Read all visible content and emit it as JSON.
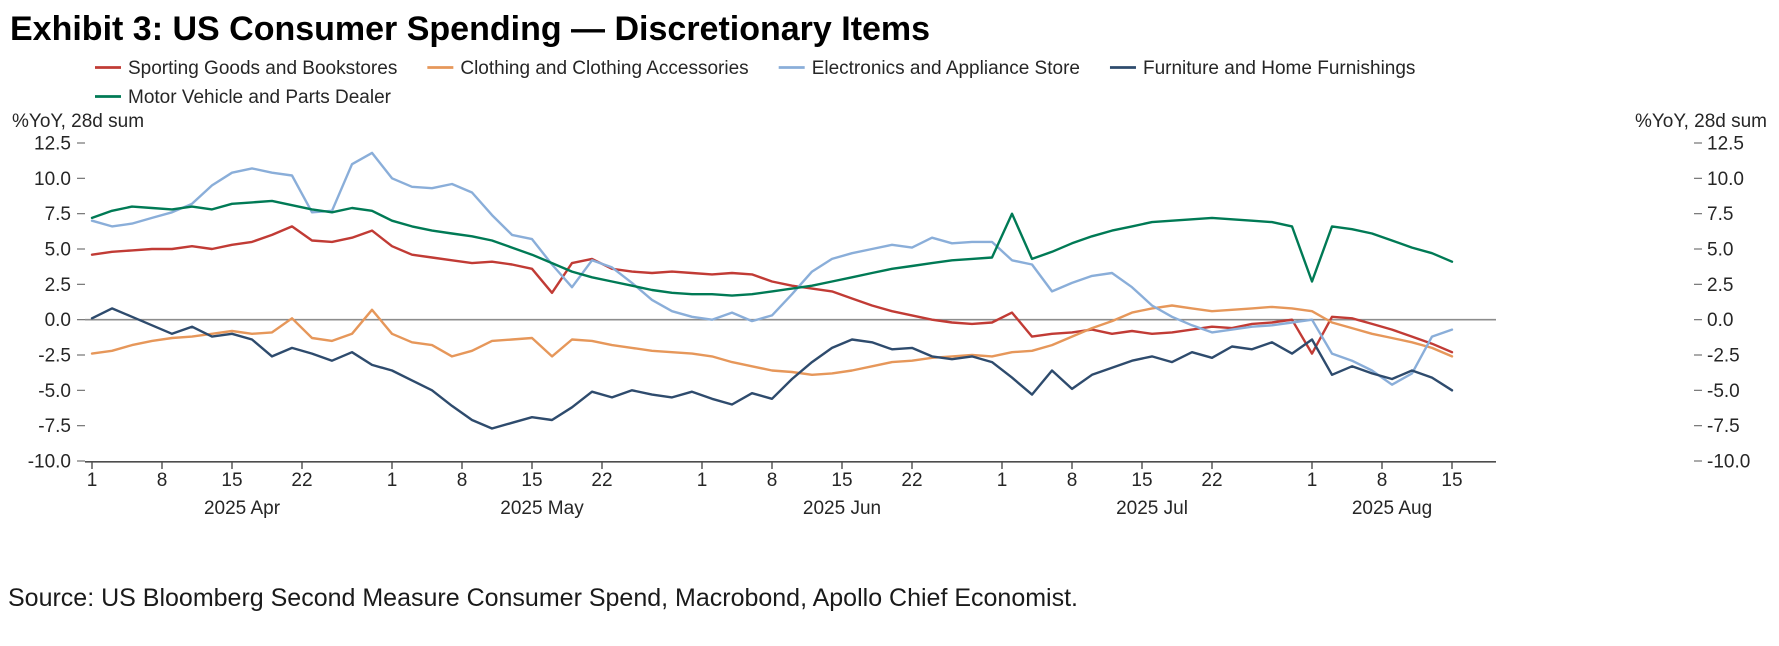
{
  "title": "Exhibit 3: US Consumer Spending — Discretionary Items",
  "source": "Source: US Bloomberg Second Measure Consumer Spend, Macrobond, Apollo Chief Economist.",
  "chart_data": {
    "type": "line",
    "title": "Exhibit 3: US Consumer Spending — Discretionary Items",
    "ylabel_left": "%YoY, 28d sum",
    "ylabel_right": "%YoY, 28d sum",
    "ylim": [
      -10,
      12.5
    ],
    "yticks": [
      12.5,
      10,
      7.5,
      5,
      2.5,
      0,
      -2.5,
      -5,
      -7.5,
      -10
    ],
    "grid": false,
    "zero_line": true,
    "legend_position": "top",
    "x_unit": "days since 2025-04-01",
    "x": [
      0,
      2,
      4,
      6,
      8,
      10,
      12,
      14,
      16,
      18,
      20,
      22,
      24,
      26,
      28,
      30,
      32,
      34,
      36,
      38,
      40,
      42,
      44,
      46,
      48,
      50,
      52,
      54,
      56,
      58,
      60,
      62,
      64,
      66,
      68,
      70,
      72,
      74,
      76,
      78,
      80,
      82,
      84,
      86,
      88,
      90,
      92,
      94,
      96,
      98,
      100,
      102,
      104,
      106,
      108,
      110,
      112,
      114,
      116,
      118,
      120,
      122,
      124,
      126,
      128,
      130,
      132,
      134,
      136
    ],
    "xticks": [
      {
        "day": 0,
        "label": "1"
      },
      {
        "day": 7,
        "label": "8"
      },
      {
        "day": 14,
        "label": "15"
      },
      {
        "day": 21,
        "label": "22"
      },
      {
        "day": 30,
        "label": "1"
      },
      {
        "day": 37,
        "label": "8"
      },
      {
        "day": 44,
        "label": "15"
      },
      {
        "day": 51,
        "label": "22"
      },
      {
        "day": 61,
        "label": "1"
      },
      {
        "day": 68,
        "label": "8"
      },
      {
        "day": 75,
        "label": "15"
      },
      {
        "day": 82,
        "label": "22"
      },
      {
        "day": 91,
        "label": "1"
      },
      {
        "day": 98,
        "label": "8"
      },
      {
        "day": 105,
        "label": "15"
      },
      {
        "day": 112,
        "label": "22"
      },
      {
        "day": 122,
        "label": "1"
      },
      {
        "day": 129,
        "label": "8"
      },
      {
        "day": 136,
        "label": "15"
      }
    ],
    "month_labels": [
      {
        "day": 15,
        "label": "2025 Apr"
      },
      {
        "day": 45,
        "label": "2025 May"
      },
      {
        "day": 75,
        "label": "2025 Jun"
      },
      {
        "day": 106,
        "label": "2025 Jul"
      },
      {
        "day": 130,
        "label": "2025 Aug"
      }
    ],
    "series": [
      {
        "name": "Sporting Goods and Bookstores",
        "color": "#c13b35",
        "values": [
          4.6,
          4.8,
          4.9,
          5.0,
          5.0,
          5.2,
          5.0,
          5.3,
          5.5,
          6.0,
          6.6,
          5.6,
          5.5,
          5.8,
          6.3,
          5.2,
          4.6,
          4.4,
          4.2,
          4.0,
          4.1,
          3.9,
          3.6,
          1.9,
          4.0,
          4.3,
          3.6,
          3.4,
          3.3,
          3.4,
          3.3,
          3.2,
          3.3,
          3.2,
          2.7,
          2.4,
          2.2,
          2.0,
          1.5,
          1.0,
          0.6,
          0.3,
          0.0,
          -0.2,
          -0.3,
          -0.2,
          0.5,
          -1.2,
          -1.0,
          -0.9,
          -0.7,
          -1.0,
          -0.8,
          -1.0,
          -0.9,
          -0.7,
          -0.5,
          -0.6,
          -0.3,
          -0.2,
          0.0,
          -2.4,
          0.2,
          0.1,
          -0.3,
          -0.7,
          -1.2,
          -1.7,
          -2.3
        ]
      },
      {
        "name": "Clothing and Clothing Accessories",
        "color": "#e6975a",
        "values": [
          -2.4,
          -2.2,
          -1.8,
          -1.5,
          -1.3,
          -1.2,
          -1.0,
          -0.8,
          -1.0,
          -0.9,
          0.1,
          -1.3,
          -1.5,
          -1.0,
          0.7,
          -1.0,
          -1.6,
          -1.8,
          -2.6,
          -2.2,
          -1.5,
          -1.4,
          -1.3,
          -2.6,
          -1.4,
          -1.5,
          -1.8,
          -2.0,
          -2.2,
          -2.3,
          -2.4,
          -2.6,
          -3.0,
          -3.3,
          -3.6,
          -3.7,
          -3.9,
          -3.8,
          -3.6,
          -3.3,
          -3.0,
          -2.9,
          -2.7,
          -2.6,
          -2.5,
          -2.6,
          -2.3,
          -2.2,
          -1.8,
          -1.2,
          -0.6,
          -0.1,
          0.5,
          0.8,
          1.0,
          0.8,
          0.6,
          0.7,
          0.8,
          0.9,
          0.8,
          0.6,
          -0.2,
          -0.6,
          -1.0,
          -1.3,
          -1.6,
          -2.0,
          -2.6
        ]
      },
      {
        "name": "Electronics and Appliance Store",
        "color": "#8aaed9",
        "values": [
          7.0,
          6.6,
          6.8,
          7.2,
          7.6,
          8.2,
          9.5,
          10.4,
          10.7,
          10.4,
          10.2,
          7.6,
          7.7,
          11.0,
          11.8,
          10.0,
          9.4,
          9.3,
          9.6,
          9.0,
          7.4,
          6.0,
          5.7,
          3.9,
          2.3,
          4.2,
          3.7,
          2.6,
          1.4,
          0.6,
          0.2,
          0.0,
          0.5,
          -0.1,
          0.3,
          1.8,
          3.4,
          4.3,
          4.7,
          5.0,
          5.3,
          5.1,
          5.8,
          5.4,
          5.5,
          5.5,
          4.2,
          3.9,
          2.0,
          2.6,
          3.1,
          3.3,
          2.3,
          1.0,
          0.2,
          -0.4,
          -0.9,
          -0.7,
          -0.5,
          -0.4,
          -0.2,
          0.0,
          -2.4,
          -2.9,
          -3.6,
          -4.6,
          -3.8,
          -1.2,
          -0.7
        ]
      },
      {
        "name": "Furniture and Home Furnishings",
        "color": "#2e4b6d",
        "values": [
          0.1,
          0.8,
          0.2,
          -0.4,
          -1.0,
          -0.5,
          -1.2,
          -1.0,
          -1.4,
          -2.6,
          -2.0,
          -2.4,
          -2.9,
          -2.3,
          -3.2,
          -3.6,
          -4.3,
          -5.0,
          -6.1,
          -7.1,
          -7.7,
          -7.3,
          -6.9,
          -7.1,
          -6.2,
          -5.1,
          -5.5,
          -5.0,
          -5.3,
          -5.5,
          -5.1,
          -5.6,
          -6.0,
          -5.2,
          -5.6,
          -4.2,
          -3.0,
          -2.0,
          -1.4,
          -1.6,
          -2.1,
          -2.0,
          -2.6,
          -2.8,
          -2.6,
          -3.0,
          -4.1,
          -5.3,
          -3.6,
          -4.9,
          -3.9,
          -3.4,
          -2.9,
          -2.6,
          -3.0,
          -2.3,
          -2.7,
          -1.9,
          -2.1,
          -1.6,
          -2.4,
          -1.4,
          -3.9,
          -3.3,
          -3.8,
          -4.2,
          -3.6,
          -4.1,
          -5.0
        ]
      },
      {
        "name": "Motor Vehicle and Parts Dealer",
        "color": "#007a55",
        "values": [
          7.2,
          7.7,
          8.0,
          7.9,
          7.8,
          8.0,
          7.8,
          8.2,
          8.3,
          8.4,
          8.1,
          7.8,
          7.6,
          7.9,
          7.7,
          7.0,
          6.6,
          6.3,
          6.1,
          5.9,
          5.6,
          5.1,
          4.6,
          4.0,
          3.4,
          3.0,
          2.7,
          2.4,
          2.1,
          1.9,
          1.8,
          1.8,
          1.7,
          1.8,
          2.0,
          2.2,
          2.4,
          2.7,
          3.0,
          3.3,
          3.6,
          3.8,
          4.0,
          4.2,
          4.3,
          4.4,
          7.5,
          4.3,
          4.8,
          5.4,
          5.9,
          6.3,
          6.6,
          6.9,
          7.0,
          7.1,
          7.2,
          7.1,
          7.0,
          6.9,
          6.6,
          2.7,
          6.6,
          6.4,
          6.1,
          5.6,
          5.1,
          4.7,
          4.1
        ]
      }
    ]
  }
}
